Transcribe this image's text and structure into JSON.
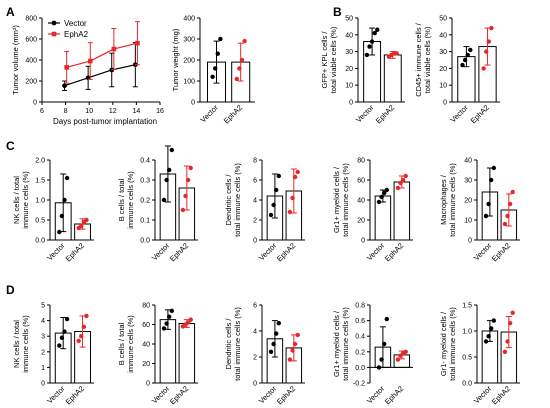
{
  "colors": {
    "vector": "#000000",
    "epha2": "#e8272b"
  },
  "panel_labels": [
    "A",
    "B",
    "C",
    "D"
  ],
  "chart_data": [
    {
      "id": "A1",
      "panel": "A",
      "type": "line",
      "ylabel": "Tumor volume (mm³)",
      "xlabel": "Days post-tumor implantation",
      "xlim": [
        6,
        16
      ],
      "xticks": [
        6,
        8,
        10,
        12,
        14,
        16
      ],
      "ylim": [
        0,
        800
      ],
      "yticks": [
        0,
        200,
        400,
        600,
        800
      ],
      "x": [
        8,
        10,
        12,
        14
      ],
      "legend": [
        "Vector",
        "EphA2"
      ],
      "legend_position": "top-left",
      "series": [
        {
          "name": "Vector",
          "color": "#000000",
          "marker": "circle",
          "values": [
            155,
            230,
            305,
            355
          ],
          "errors": [
            45,
            110,
            160,
            210
          ]
        },
        {
          "name": "EphA2",
          "color": "#e8272b",
          "marker": "square",
          "values": [
            330,
            390,
            505,
            560
          ],
          "errors": [
            150,
            175,
            195,
            205
          ]
        }
      ]
    },
    {
      "id": "A2",
      "panel": "A",
      "type": "bar",
      "ylabel": "Tumor weight (mg)",
      "categories": [
        "Vector",
        "EphA2"
      ],
      "ylim": [
        0,
        400
      ],
      "yticks": [
        0,
        100,
        200,
        300,
        400
      ],
      "values": [
        190,
        190
      ],
      "errors": [
        100,
        90
      ],
      "points": [
        [
          120,
          160,
          230,
          300
        ],
        [
          110,
          160,
          200,
          290
        ]
      ]
    },
    {
      "id": "B1",
      "panel": "B",
      "type": "bar",
      "ylabel": [
        "GFP+ KPL cells /",
        "total viable cells (%)"
      ],
      "categories": [
        "Vector",
        "EphA2"
      ],
      "ylim": [
        0,
        50
      ],
      "yticks": [
        0,
        10,
        20,
        30,
        40,
        50
      ],
      "values": [
        36,
        28
      ],
      "errors": [
        8,
        2
      ],
      "points": [
        [
          28,
          33,
          36,
          41,
          43
        ],
        [
          27,
          28,
          29,
          29
        ]
      ]
    },
    {
      "id": "B2",
      "panel": "B",
      "type": "bar",
      "ylabel": [
        "CD45+ immune cells /",
        "total viable cells (%)"
      ],
      "categories": [
        "Vector",
        "EphA2"
      ],
      "ylim": [
        0,
        50
      ],
      "yticks": [
        0,
        10,
        20,
        30,
        40,
        50
      ],
      "values": [
        27,
        33
      ],
      "errors": [
        6,
        11
      ],
      "points": [
        [
          22,
          25,
          28,
          31
        ],
        [
          20,
          30,
          36,
          44
        ]
      ]
    },
    {
      "id": "C1",
      "panel": "C",
      "type": "bar",
      "ylabel": [
        "NK cells / total",
        "immune cells (%)"
      ],
      "categories": [
        "Vector",
        "EphA2"
      ],
      "ylim": [
        0,
        2
      ],
      "yticks": [
        0,
        0.5,
        1.0,
        1.5,
        2.0
      ],
      "yticklabels": [
        "0.0",
        "0.5",
        "1.0",
        "1.5",
        "2.0"
      ],
      "values": [
        0.93,
        0.4
      ],
      "errors": [
        0.72,
        0.13
      ],
      "points": [
        [
          0.2,
          0.6,
          1.0,
          1.55
        ],
        [
          0.3,
          0.35,
          0.45,
          0.5
        ]
      ]
    },
    {
      "id": "C2",
      "panel": "C",
      "type": "bar",
      "ylabel": [
        "B cells / total",
        "immune cells (%)"
      ],
      "categories": [
        "Vector",
        "EphA2"
      ],
      "ylim": [
        0,
        0.4
      ],
      "yticks": [
        0,
        0.1,
        0.2,
        0.3,
        0.4
      ],
      "yticklabels": [
        "0.0",
        "0.1",
        "0.2",
        "0.3",
        "0.4"
      ],
      "values": [
        0.33,
        0.26
      ],
      "errors": [
        0.14,
        0.11
      ],
      "points": [
        [
          0.2,
          0.3,
          0.35,
          0.45
        ],
        [
          0.15,
          0.22,
          0.3,
          0.36
        ]
      ]
    },
    {
      "id": "C3",
      "panel": "C",
      "type": "bar",
      "ylabel": [
        "Dendritic cells /",
        "total immune cells (%)"
      ],
      "categories": [
        "Vector",
        "EphA2"
      ],
      "ylim": [
        0,
        8
      ],
      "yticks": [
        0,
        2,
        4,
        6,
        8
      ],
      "values": [
        4.4,
        4.9
      ],
      "errors": [
        2.2,
        2.2
      ],
      "points": [
        [
          2.5,
          3.5,
          5.0,
          6.4
        ],
        [
          2.8,
          4.2,
          6.3,
          6.8
        ]
      ]
    },
    {
      "id": "C4",
      "panel": "C",
      "type": "bar",
      "ylabel": [
        "Gr1+ myeloid cells /",
        "total immune cells (%)"
      ],
      "categories": [
        "Vector",
        "EphA2"
      ],
      "ylim": [
        0,
        80
      ],
      "yticks": [
        0,
        20,
        40,
        60,
        80
      ],
      "values": [
        44,
        58
      ],
      "errors": [
        6,
        6
      ],
      "points": [
        [
          38,
          43,
          47,
          50
        ],
        [
          52,
          57,
          60,
          64
        ]
      ]
    },
    {
      "id": "C5",
      "panel": "C",
      "type": "bar",
      "ylabel": [
        "Macrophages /",
        "total immune cells (%)"
      ],
      "categories": [
        "Vector",
        "EphA2"
      ],
      "ylim": [
        0,
        40
      ],
      "yticks": [
        0,
        10,
        20,
        30,
        40
      ],
      "values": [
        24,
        15
      ],
      "errors": [
        12,
        8
      ],
      "points": [
        [
          12,
          18,
          30,
          36
        ],
        [
          8,
          12,
          18,
          24
        ]
      ]
    },
    {
      "id": "D1",
      "panel": "D",
      "type": "bar",
      "ylabel": [
        "NK cells / total",
        "immune cells (%)"
      ],
      "categories": [
        "Vector",
        "EphA2"
      ],
      "ylim": [
        0,
        5
      ],
      "yticks": [
        0,
        1,
        2,
        3,
        4,
        5
      ],
      "values": [
        3.2,
        3.3
      ],
      "errors": [
        1.0,
        1.0
      ],
      "points": [
        [
          2.4,
          2.9,
          3.3,
          4.1
        ],
        [
          2.7,
          3.0,
          3.6,
          4.3
        ]
      ]
    },
    {
      "id": "D2",
      "panel": "D",
      "type": "bar",
      "ylabel": [
        "B cells / total",
        "immune cells (%)"
      ],
      "categories": [
        "Vector",
        "EphA2"
      ],
      "ylim": [
        0,
        80
      ],
      "yticks": [
        0,
        20,
        40,
        60,
        80
      ],
      "values": [
        65,
        61
      ],
      "errors": [
        10,
        4
      ],
      "points": [
        [
          56,
          61,
          68,
          74
        ],
        [
          58,
          60,
          62,
          65
        ]
      ]
    },
    {
      "id": "D3",
      "panel": "D",
      "type": "bar",
      "ylabel": [
        "Dendritic cells /",
        "total immune cells (%)"
      ],
      "categories": [
        "Vector",
        "EphA2"
      ],
      "ylim": [
        0,
        6
      ],
      "yticks": [
        0,
        2,
        4,
        6
      ],
      "values": [
        3.4,
        2.7
      ],
      "errors": [
        1.4,
        1.0
      ],
      "points": [
        [
          2.4,
          3.0,
          3.8,
          4.6
        ],
        [
          1.8,
          2.5,
          3.0,
          3.7
        ]
      ]
    },
    {
      "id": "D4",
      "panel": "D",
      "type": "bar",
      "ylabel": [
        "Gr1+ myeloid cells /",
        "total immune cells (%)"
      ],
      "categories": [
        "Vector",
        "EphA2"
      ],
      "ylim": [
        -0.2,
        0.8
      ],
      "yticks": [
        -0.2,
        0.0,
        0.2,
        0.4,
        0.6,
        0.8
      ],
      "yticklabels": [
        "-0.2",
        "0.0",
        "0.2",
        "0.4",
        "0.6",
        "0.8"
      ],
      "values": [
        0.26,
        0.16
      ],
      "errors": [
        0.26,
        0.05
      ],
      "points": [
        [
          0.0,
          0.1,
          0.3,
          0.62
        ],
        [
          0.1,
          0.15,
          0.18,
          0.2
        ]
      ]
    },
    {
      "id": "D5",
      "panel": "D",
      "type": "bar",
      "ylabel": [
        "Gr1- myeloid cells /",
        "total immune cells (%)"
      ],
      "categories": [
        "Vector",
        "EphA2"
      ],
      "ylim": [
        0,
        1.5
      ],
      "yticks": [
        0,
        0.5,
        1.0,
        1.5
      ],
      "yticklabels": [
        "0.0",
        "0.5",
        "1.0",
        "1.5"
      ],
      "values": [
        1.0,
        0.98
      ],
      "errors": [
        0.2,
        0.3
      ],
      "points": [
        [
          0.8,
          0.9,
          1.05,
          1.2
        ],
        [
          0.6,
          0.8,
          1.15,
          1.35
        ]
      ]
    }
  ]
}
